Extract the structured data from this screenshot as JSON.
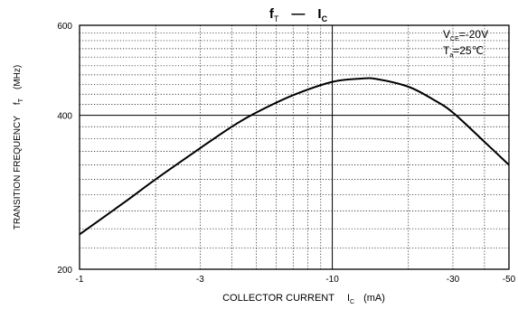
{
  "chart_data": {
    "type": "line",
    "title": {
      "main": "f",
      "main_sub": "T",
      "dash": "—",
      "vs": "I",
      "vs_sub": "C"
    },
    "xlabel": {
      "text": "COLLECTOR CURRENT",
      "symbol": "I",
      "symbol_sub": "C",
      "unit": "(mA)"
    },
    "ylabel": {
      "text": "TRANSITION FREQUENCY",
      "symbol": "f",
      "symbol_sub": "T",
      "unit": "(MHz)"
    },
    "x_scale": "log",
    "y_scale": "log",
    "xlim": [
      -1,
      -50
    ],
    "ylim": [
      200,
      600
    ],
    "x_ticks": [
      {
        "value": -1,
        "label": "-1"
      },
      {
        "value": -3,
        "label": "-3"
      },
      {
        "value": -10,
        "label": "-10"
      },
      {
        "value": -30,
        "label": "-30"
      },
      {
        "value": -50,
        "label": "-50"
      }
    ],
    "y_ticks": [
      {
        "value": 200,
        "label": "200"
      },
      {
        "value": 400,
        "label": "400"
      },
      {
        "value": 600,
        "label": "600"
      }
    ],
    "annotations": [
      {
        "main": "V",
        "sub": "CE",
        "rest": "=-20V"
      },
      {
        "main": "T",
        "sub": "a",
        "rest": "=25℃"
      }
    ],
    "series": [
      {
        "x": [
          -1,
          -1.5,
          -2,
          -3,
          -4,
          -5,
          -7,
          -10,
          -13,
          -15,
          -20,
          -25,
          -30,
          -40,
          -50
        ],
        "y": [
          234,
          270,
          300,
          345,
          380,
          405,
          438,
          465,
          472,
          471,
          455,
          430,
          405,
          355,
          320
        ]
      }
    ],
    "grid": true
  }
}
